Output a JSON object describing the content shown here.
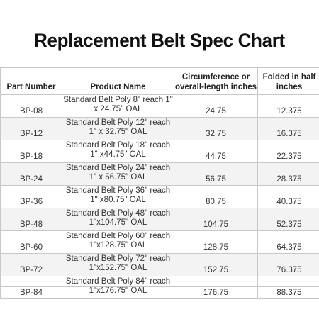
{
  "title": "Replacement Belt Spec Chart",
  "table": {
    "headers": {
      "part_number": "Part Number",
      "product_name": "Product Name",
      "circumference": "Circumference or overall-length inches",
      "folded": "Folded in half inches"
    },
    "rows": [
      {
        "part": "BP-08",
        "name": "Standard Belt Poly 8\" reach 1\" x 24.75\" OAL",
        "circ": "24.75",
        "fold": "12.375"
      },
      {
        "part": "BP-12",
        "name": "Standard Belt Poly 12\" reach 1\" x 32.75\" OAL",
        "circ": "32.75",
        "fold": "16.375"
      },
      {
        "part": "BP-18",
        "name": "Standard Belt Poly 18\" reach 1\" x44.75\" OAL",
        "circ": "44.75",
        "fold": "22.375"
      },
      {
        "part": "BP-24",
        "name": "Standard Belt Poly 24\" reach 1\" x 56.75\" OAL",
        "circ": "56.75",
        "fold": "28.375"
      },
      {
        "part": "BP-36",
        "name": "Standard Belt Poly 36\" reach 1\" x80.75\" OAL",
        "circ": "80.75",
        "fold": "40.375"
      },
      {
        "part": "BP-48",
        "name": "Standard Belt Poly 48\" reach 1\"x104.75\" OAL",
        "circ": "104.75",
        "fold": "52.375"
      },
      {
        "part": "BP-60",
        "name": "Standard Belt Poly 60\" reach 1\"x128.75\" OAL",
        "circ": "128.75",
        "fold": "64.375"
      },
      {
        "part": "BP-72",
        "name": "Standard Belt Poly 72\" reach 1\"x152.75\" OAL",
        "circ": "152.75",
        "fold": "76.375"
      },
      {
        "part": "BP-84",
        "name": "Standard Belt Poly 84\" reach 1\"x176.75\" OAL",
        "circ": "176.75",
        "fold": "88.375"
      }
    ]
  }
}
